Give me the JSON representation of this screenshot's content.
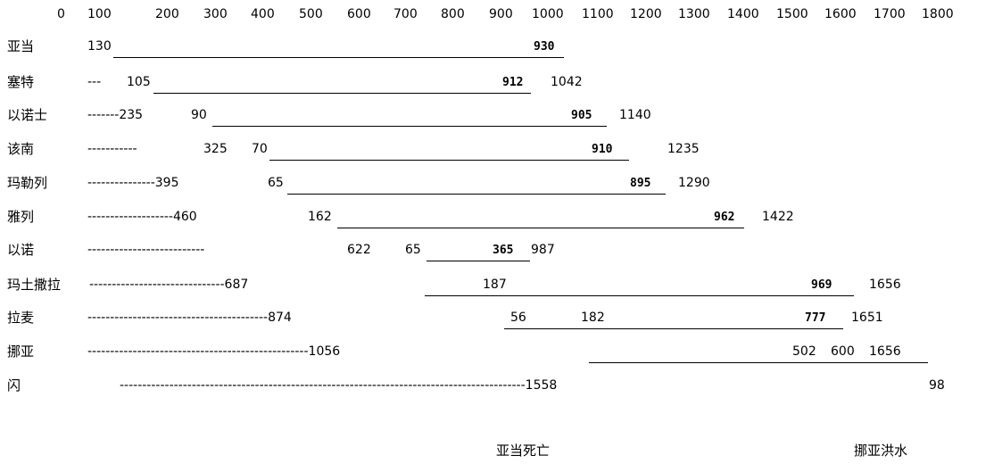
{
  "scale_ticks": [
    "0",
    "100",
    "200",
    "300",
    "400",
    "500",
    "600",
    "700",
    "800",
    "900",
    "1000",
    "1100",
    "1200",
    "1300",
    "1400",
    "1500",
    "1600",
    "1700",
    "1800"
  ],
  "rows": [
    {
      "name": "亚当",
      "dash": "",
      "start": "130",
      "span": "",
      "bold": "930",
      "end": ""
    },
    {
      "name": "塞特",
      "dash": "---",
      "start": "105",
      "span": "",
      "bold": "912",
      "end": "1042"
    },
    {
      "name": "以诺士",
      "dash": "-------235",
      "start": "90",
      "span": "",
      "bold": "905",
      "end": "1140"
    },
    {
      "name": "该南",
      "dash": "-----------",
      "start": "325",
      "span": "70",
      "bold": "910",
      "end": "1235"
    },
    {
      "name": "玛勒列",
      "dash": "---------------395",
      "start": "65",
      "span": "",
      "bold": "895",
      "end": "1290"
    },
    {
      "name": "雅列",
      "dash": "-------------------460",
      "start": "162",
      "span": "",
      "bold": "962",
      "end": "1422"
    },
    {
      "name": "以诺",
      "dash": "--------------------------",
      "start": "622",
      "span": "65",
      "bold": "365",
      "end": "987"
    },
    {
      "name": "玛土撒拉",
      "dash": "------------------------------687",
      "start": "187",
      "span": "",
      "bold": "969",
      "end": "1656"
    },
    {
      "name": "拉麦",
      "dash": "----------------------------------------874",
      "start": "56",
      "span": "182",
      "bold": "777",
      "end": "1651"
    },
    {
      "name": "挪亚",
      "dash": "-------------------------------------------------1056",
      "start": "502",
      "span": "600",
      "bold": "",
      "end": "1656"
    },
    {
      "name": "闪",
      "dash": "------------------------------------------------------------------------------------------1558",
      "start": "98",
      "span": "",
      "bold": "",
      "end": ""
    }
  ],
  "events": {
    "adam_death": "亚当死亡",
    "noah_flood": "挪亚洪水"
  }
}
